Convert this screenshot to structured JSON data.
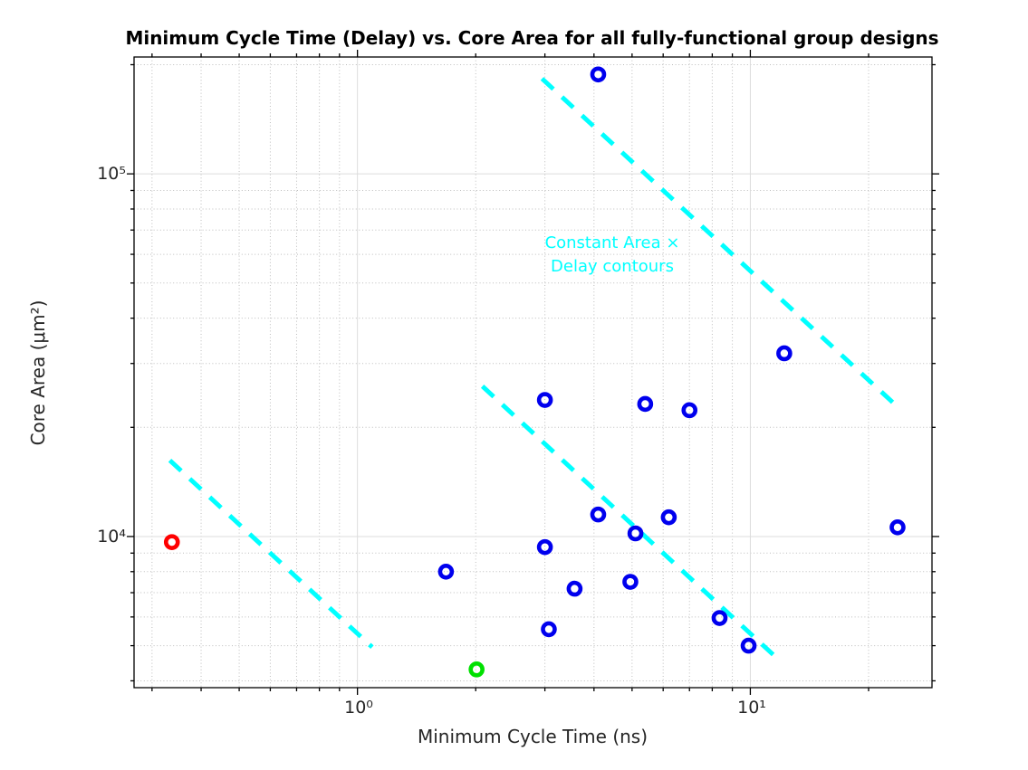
{
  "title": "Minimum Cycle Time (Delay) vs. Core Area for all fully-functional group designs",
  "chart_data": {
    "type": "scatter",
    "title": "Minimum Cycle Time (Delay) vs. Core Area for all fully-functional group designs",
    "xlabel": "Minimum Cycle Time (ns)",
    "ylabel": "Core Area (μm²)",
    "x_scale": "log",
    "y_scale": "log",
    "xlim": [
      0.27,
      29
    ],
    "ylim": [
      3830,
      210000
    ],
    "grid": true,
    "legend": "none",
    "x_major_ticks": [
      {
        "value": 1,
        "label": "10⁰"
      },
      {
        "value": 10,
        "label": "10¹"
      }
    ],
    "y_major_ticks": [
      {
        "value": 10000,
        "label": "10⁴"
      },
      {
        "value": 100000,
        "label": "10⁵"
      }
    ],
    "x_minor_gridlines": [
      0.3,
      0.4,
      0.5,
      0.6,
      0.7,
      0.8,
      0.9,
      2,
      3,
      4,
      5,
      6,
      7,
      8,
      9,
      20
    ],
    "y_minor_gridlines": [
      4000,
      5000,
      6000,
      7000,
      8000,
      9000,
      20000,
      30000,
      40000,
      50000,
      60000,
      70000,
      80000,
      90000,
      200000
    ],
    "series": [
      {
        "name": "blue-designs",
        "color": "#0000ee",
        "marker": "o",
        "points": [
          [
            4.1,
            188000
          ],
          [
            12.2,
            32000
          ],
          [
            3.0,
            23800
          ],
          [
            5.4,
            23200
          ],
          [
            7.0,
            22300
          ],
          [
            4.1,
            11500
          ],
          [
            6.2,
            11300
          ],
          [
            5.1,
            10200
          ],
          [
            23.7,
            10600
          ],
          [
            3.0,
            9350
          ],
          [
            1.68,
            8000
          ],
          [
            3.57,
            7180
          ],
          [
            4.95,
            7500
          ],
          [
            3.07,
            5550
          ],
          [
            8.35,
            5960
          ],
          [
            9.9,
            5000
          ]
        ]
      },
      {
        "name": "red-design",
        "color": "#ff0000",
        "marker": "o",
        "points": [
          [
            0.337,
            9650
          ]
        ]
      },
      {
        "name": "green-design",
        "color": "#00e000",
        "marker": "o",
        "points": [
          [
            2.01,
            4300
          ]
        ]
      }
    ],
    "contours": {
      "color": "#00ffff",
      "style": "dashed",
      "lines": [
        {
          "area_delay_product": 5400,
          "t_range": [
            0.333,
            1.09
          ]
        },
        {
          "area_delay_product": 54000,
          "t_range": [
            2.08,
            11.8
          ]
        },
        {
          "area_delay_product": 540000,
          "t_range": [
            2.95,
            23.5
          ]
        }
      ]
    },
    "annotation": {
      "line1": "Constant Area ×",
      "line2": "Delay contours"
    }
  }
}
